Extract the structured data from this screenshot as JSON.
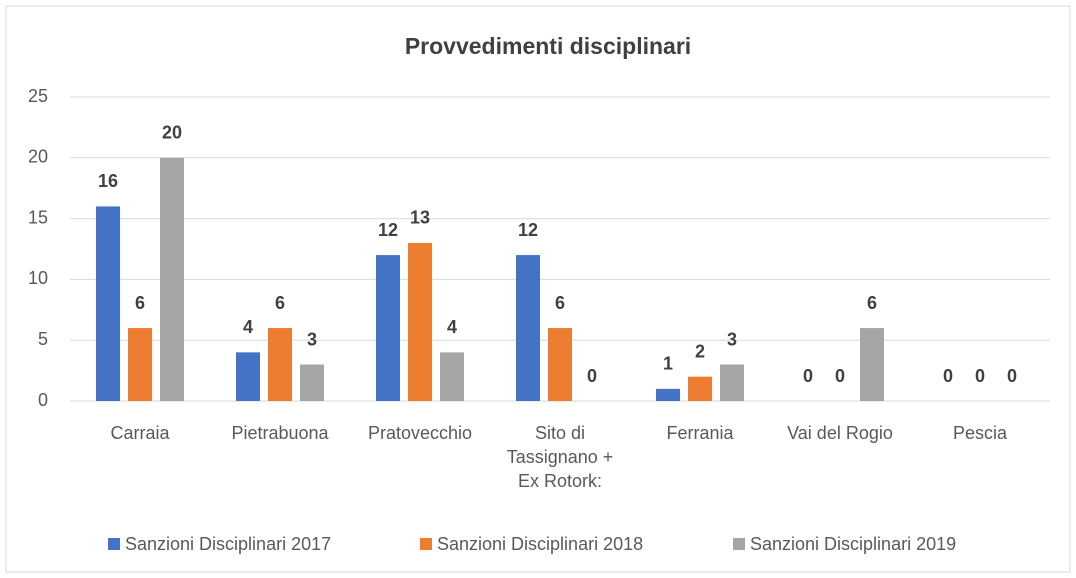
{
  "chart_data": {
    "type": "bar",
    "title": "Provvedimenti disciplinari",
    "categories": [
      "Carraia",
      "Pietrabuona",
      "Pratovecchio",
      "Sito di Tassignano + Ex Rotork:",
      "Ferrania",
      "Vai del Rogio",
      "Pescia"
    ],
    "series": [
      {
        "name": "Sanzioni Disciplinari 2017",
        "color": "#4472c4",
        "values": [
          16,
          4,
          12,
          12,
          1,
          0,
          0
        ]
      },
      {
        "name": "Sanzioni Disciplinari 2018",
        "color": "#ed7d31",
        "values": [
          6,
          6,
          13,
          6,
          2,
          0,
          0
        ]
      },
      {
        "name": "Sanzioni Disciplinari 2019",
        "color": "#a5a5a5",
        "values": [
          20,
          3,
          4,
          0,
          3,
          6,
          0
        ]
      }
    ],
    "ylim": [
      0,
      25
    ],
    "yticks": [
      0,
      5,
      10,
      15,
      20,
      25
    ],
    "grid": true,
    "legend": "bottom"
  }
}
